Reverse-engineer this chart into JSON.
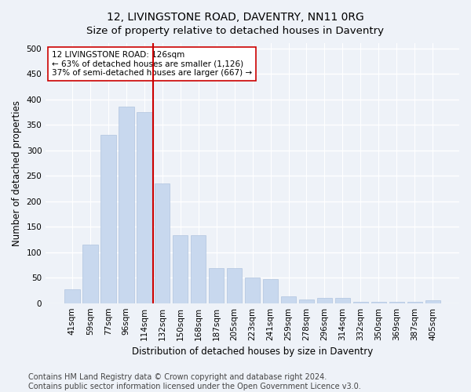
{
  "title": "12, LIVINGSTONE ROAD, DAVENTRY, NN11 0RG",
  "subtitle": "Size of property relative to detached houses in Daventry",
  "xlabel": "Distribution of detached houses by size in Daventry",
  "ylabel": "Number of detached properties",
  "categories": [
    "41sqm",
    "59sqm",
    "77sqm",
    "96sqm",
    "114sqm",
    "132sqm",
    "150sqm",
    "168sqm",
    "187sqm",
    "205sqm",
    "223sqm",
    "241sqm",
    "259sqm",
    "278sqm",
    "296sqm",
    "314sqm",
    "332sqm",
    "350sqm",
    "369sqm",
    "387sqm",
    "405sqm"
  ],
  "values": [
    27,
    115,
    330,
    385,
    375,
    235,
    133,
    133,
    68,
    68,
    50,
    47,
    14,
    7,
    11,
    11,
    3,
    2,
    2,
    2,
    6
  ],
  "bar_color": "#c8d8ee",
  "bar_edge_color": "#b0c4de",
  "vline_index": 4,
  "vline_color": "#cc0000",
  "annotation_text": "12 LIVINGSTONE ROAD: 126sqm\n← 63% of detached houses are smaller (1,126)\n37% of semi-detached houses are larger (667) →",
  "annotation_box_facecolor": "#ffffff",
  "annotation_box_edgecolor": "#cc0000",
  "ylim": [
    0,
    510
  ],
  "yticks": [
    0,
    50,
    100,
    150,
    200,
    250,
    300,
    350,
    400,
    450,
    500
  ],
  "footer_line1": "Contains HM Land Registry data © Crown copyright and database right 2024.",
  "footer_line2": "Contains public sector information licensed under the Open Government Licence v3.0.",
  "bg_color": "#eef2f8",
  "plot_bg_color": "#eef2f8",
  "grid_color": "#ffffff",
  "title_fontsize": 10,
  "subtitle_fontsize": 9.5,
  "axis_label_fontsize": 8.5,
  "tick_fontsize": 7.5,
  "annotation_fontsize": 7.5,
  "footer_fontsize": 7
}
